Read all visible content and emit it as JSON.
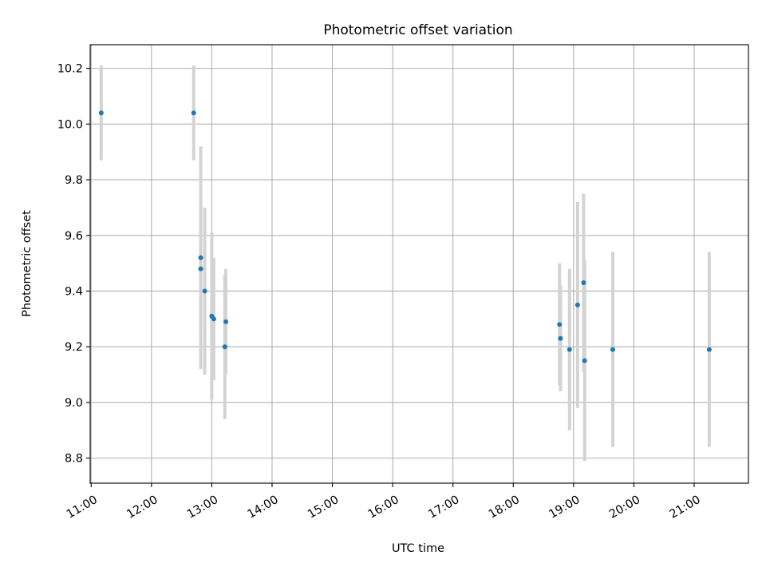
{
  "chart_data": {
    "type": "scatter",
    "title": "Photometric offset variation",
    "xlabel": "UTC time",
    "ylabel": "Photometric offset",
    "x_axis_type": "time",
    "xlim": [
      "10:59",
      "21:54"
    ],
    "ylim": [
      8.71,
      10.285
    ],
    "x_ticks": [
      "11:00",
      "12:00",
      "13:00",
      "14:00",
      "15:00",
      "16:00",
      "17:00",
      "18:00",
      "19:00",
      "20:00",
      "21:00"
    ],
    "y_ticks": [
      8.8,
      9.0,
      9.2,
      9.4,
      9.6,
      9.8,
      10.0,
      10.2
    ],
    "y_tick_labels": [
      "8.8",
      "9.0",
      "9.2",
      "9.4",
      "9.6",
      "9.8",
      "10.0",
      "10.2"
    ],
    "grid": true,
    "legend": "none",
    "marker_color": "#1f77b4",
    "errorbar_color": "#d3d3d3",
    "points": [
      {
        "time": "11:10",
        "y": 10.04,
        "err": 0.17
      },
      {
        "time": "12:42",
        "y": 10.04,
        "err": 0.17
      },
      {
        "time": "12:49",
        "y": 9.52,
        "err": 0.4
      },
      {
        "time": "12:49",
        "y": 9.48,
        "err": 0.22
      },
      {
        "time": "12:53",
        "y": 9.4,
        "err": 0.3
      },
      {
        "time": "13:00",
        "y": 9.31,
        "err": 0.3
      },
      {
        "time": "13:02",
        "y": 9.3,
        "err": 0.22
      },
      {
        "time": "13:13",
        "y": 9.2,
        "err": 0.26
      },
      {
        "time": "13:14",
        "y": 9.29,
        "err": 0.19
      },
      {
        "time": "18:46",
        "y": 9.28,
        "err": 0.22
      },
      {
        "time": "18:47",
        "y": 9.23,
        "err": 0.19
      },
      {
        "time": "18:56",
        "y": 9.19,
        "err": 0.29
      },
      {
        "time": "19:04",
        "y": 9.35,
        "err": 0.37
      },
      {
        "time": "19:10",
        "y": 9.43,
        "err": 0.32
      },
      {
        "time": "19:11",
        "y": 9.15,
        "err": 0.36
      },
      {
        "time": "19:39",
        "y": 9.19,
        "err": 0.35
      },
      {
        "time": "21:15",
        "y": 9.19,
        "err": 0.35
      }
    ]
  }
}
